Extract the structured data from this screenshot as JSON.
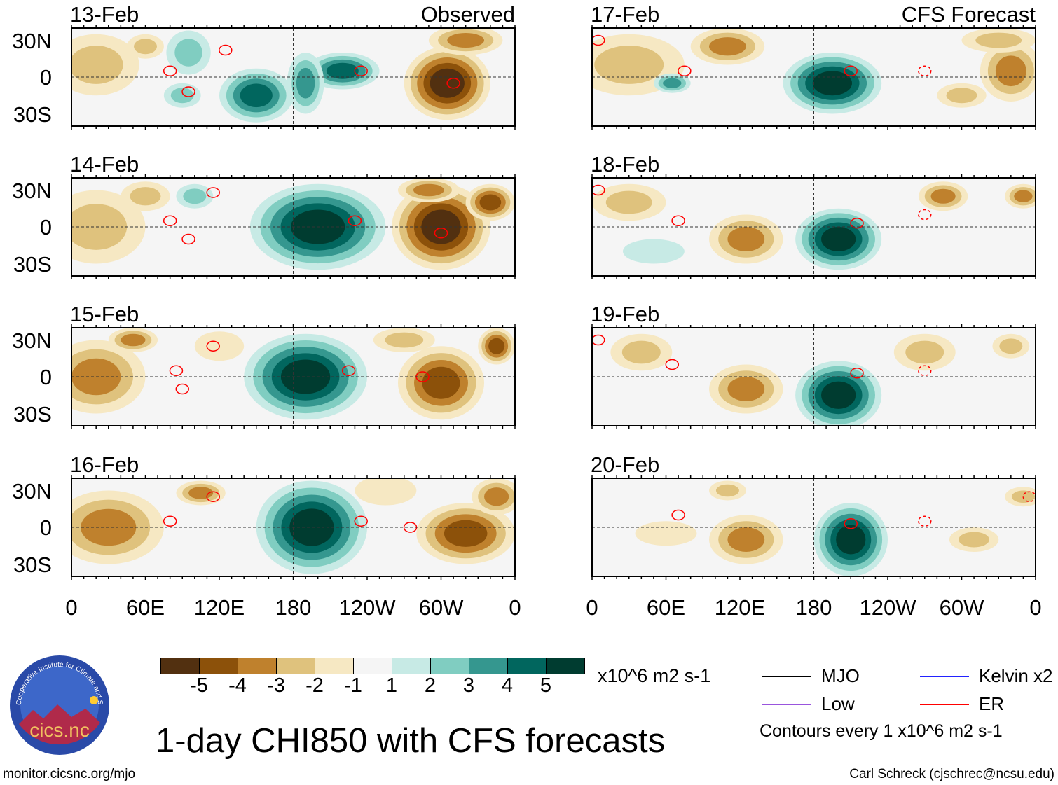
{
  "title": "1-day CHI850 with CFS forecasts",
  "labels": {
    "observed": "Observed",
    "forecast": "CFS Forecast"
  },
  "panels": [
    {
      "date": "13-Feb",
      "group": "observed"
    },
    {
      "date": "14-Feb",
      "group": "observed"
    },
    {
      "date": "15-Feb",
      "group": "observed"
    },
    {
      "date": "16-Feb",
      "group": "observed"
    },
    {
      "date": "17-Feb",
      "group": "forecast"
    },
    {
      "date": "18-Feb",
      "group": "forecast"
    },
    {
      "date": "19-Feb",
      "group": "forecast"
    },
    {
      "date": "20-Feb",
      "group": "forecast"
    }
  ],
  "lat_ticks": [
    "30N",
    "0",
    "30S"
  ],
  "lon_ticks": [
    "0",
    "60E",
    "120E",
    "180",
    "120W",
    "60W",
    "0"
  ],
  "colorbar": {
    "labels": [
      "-5",
      "-4",
      "-3",
      "-2",
      "-1",
      "1",
      "2",
      "3",
      "4",
      "5"
    ],
    "colors": [
      "#523010",
      "#8c510a",
      "#bf812d",
      "#dfc27d",
      "#f6e8c3",
      "#f5f5f5",
      "#c7eae5",
      "#80cdc1",
      "#35978f",
      "#01665e",
      "#003c30"
    ],
    "units": "x10^6 m2 s-1"
  },
  "legend": {
    "items": [
      {
        "label": "MJO",
        "color": "#000000"
      },
      {
        "label": "Kelvin x2",
        "color": "#2222ff"
      },
      {
        "label": "Low",
        "color": "#9955dd"
      },
      {
        "label": "ER",
        "color": "#ff0000"
      }
    ],
    "note": "Contours every 1 x10^6 m2 s-1"
  },
  "logo": {
    "text": "cics.nc",
    "ring": "Cooperative Institute for Climate and Satellites"
  },
  "footer": {
    "url": "monitor.cicsnc.org/mjo",
    "credit": "Carl Schreck (cjschrec@ncsu.edu)"
  }
}
